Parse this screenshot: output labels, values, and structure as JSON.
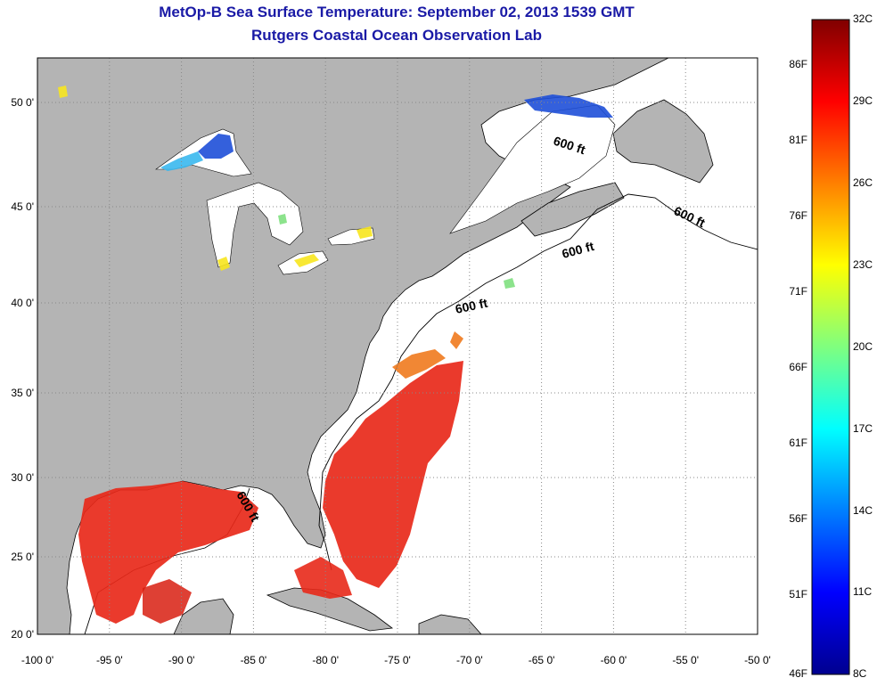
{
  "title": {
    "line1": "MetOp-B Sea Surface Temperature:  September 02, 2013 1539 GMT",
    "line2": "Rutgers Coastal Ocean Observation Lab"
  },
  "axes": {
    "lon_ticks": [
      "-100 0'",
      "-95 0'",
      "-90 0'",
      "-85 0'",
      "-80 0'",
      "-75 0'",
      "-70 0'",
      "-65 0'",
      "-60 0'",
      "-55 0'",
      "-50 0'"
    ],
    "lat_ticks": [
      "50 0'",
      "45 0'",
      "40 0'",
      "35 0'",
      "30 0'",
      "25 0'",
      "20 0'"
    ]
  },
  "isobath_labels": [
    "600 ft",
    "600 ft",
    "600 ft",
    "600 ft",
    "600 ft"
  ],
  "colorbar": {
    "fahrenheit": [
      "86F",
      "81F",
      "76F",
      "71F",
      "66F",
      "61F",
      "56F",
      "51F",
      "46F"
    ],
    "celsius": [
      "32C",
      "29C",
      "26C",
      "23C",
      "20C",
      "17C",
      "14C",
      "11C",
      "8C"
    ]
  },
  "colors": {
    "land": "#b4b4b4",
    "ocean": "#ffffff",
    "title": "#1a1aa6",
    "warm": "#e8291a",
    "cold": "#1e4fd8"
  }
}
